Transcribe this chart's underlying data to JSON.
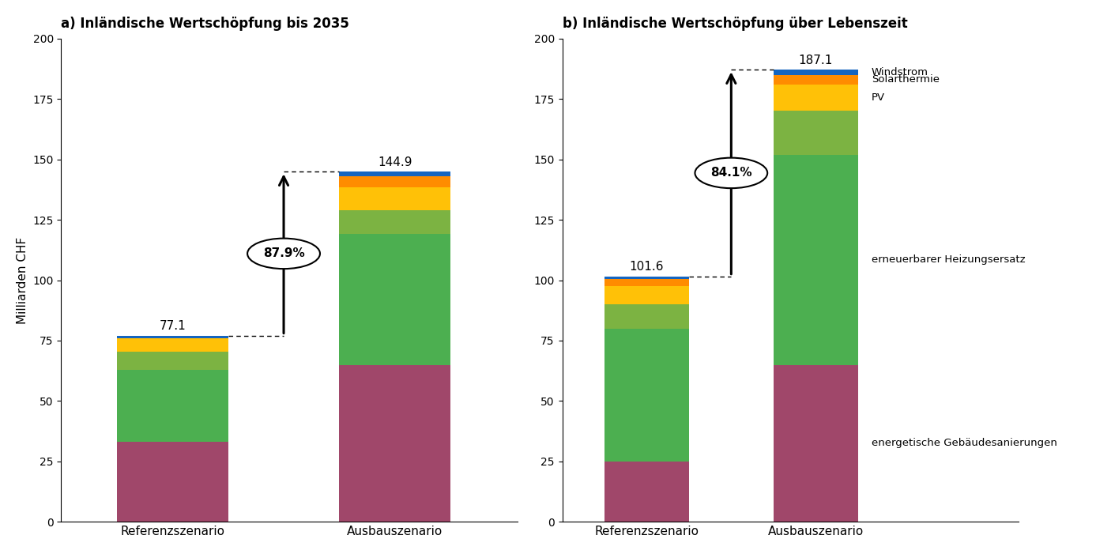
{
  "title_a": "a) Inländische Wertschöpfung bis 2035",
  "title_b": "b) Inländische Wertschöpfung über Lebenszeit",
  "ylabel": "Milliarden CHF",
  "categories": [
    "Referenzszenario",
    "Ausbauszenario"
  ],
  "ylim": [
    0,
    200
  ],
  "yticks": [
    0,
    25,
    50,
    75,
    100,
    125,
    150,
    175,
    200
  ],
  "chart_a": {
    "total_ref": 77.1,
    "total_aus": 144.9,
    "pct_label": "87.9%",
    "segments_ref": [
      33.0,
      30.0,
      7.5,
      5.5,
      0.0,
      1.1
    ],
    "segments_aus": [
      65.0,
      54.0,
      10.0,
      9.5,
      4.5,
      1.9
    ]
  },
  "chart_b": {
    "total_ref": 101.6,
    "total_aus": 187.1,
    "pct_label": "84.1%",
    "segments_ref": [
      25.0,
      55.0,
      10.0,
      7.5,
      3.0,
      1.1
    ],
    "segments_aus": [
      65.0,
      87.0,
      18.0,
      11.0,
      4.0,
      2.1
    ]
  },
  "colors": [
    "#A0476A",
    "#4CAF50",
    "#7CB342",
    "#FFC107",
    "#FF8C00",
    "#1565C0"
  ],
  "legend_b": [
    {
      "idx": 5,
      "label": "Windstrom"
    },
    {
      "idx": 4,
      "label": "Solarthermie"
    },
    {
      "idx": 3,
      "label": "PV"
    },
    {
      "idx": 1,
      "label": "erneuerbarer Heizungsersatz"
    },
    {
      "idx": 0,
      "label": "energetische Gebäudesanierungen"
    }
  ],
  "background_color": "#ffffff"
}
